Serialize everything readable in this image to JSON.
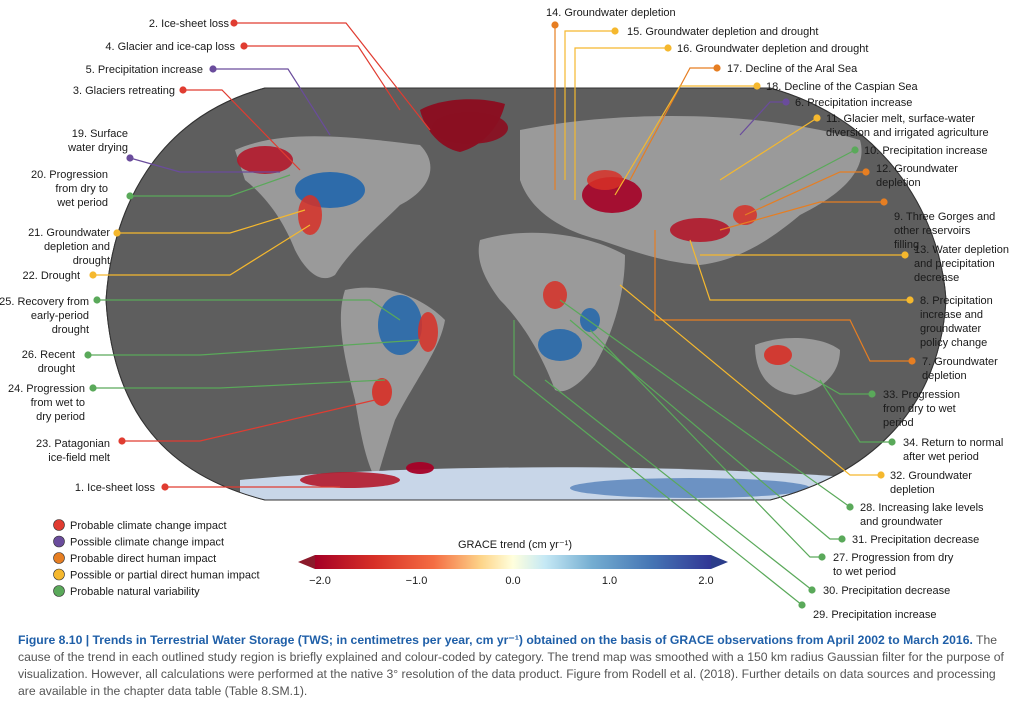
{
  "colors": {
    "climate_probable": "#e03c31",
    "climate_possible": "#6a4c9c",
    "human_direct": "#e67e22",
    "human_possible": "#f5b82e",
    "natural": "#5aa95a",
    "land": "#8e8e8e",
    "ocean_frame": "#ffffff"
  },
  "legend": [
    {
      "key": "climate_probable",
      "label": "Probable climate change impact"
    },
    {
      "key": "climate_possible",
      "label": "Possible climate change impact"
    },
    {
      "key": "human_direct",
      "label": "Probable direct human impact"
    },
    {
      "key": "human_possible",
      "label": "Possible or partial direct human impact"
    },
    {
      "key": "natural",
      "label": "Probable natural variability"
    }
  ],
  "colorbar": {
    "title": "GRACE trend (cm yr⁻¹)",
    "ticks": [
      "−2.0",
      "−1.0",
      "0.0",
      "1.0",
      "2.0"
    ],
    "min": -2.0,
    "max": 2.0
  },
  "regions": [
    {
      "id": "r1",
      "cat": "climate_probable",
      "lines": [
        "1. Ice-sheet loss"
      ]
    },
    {
      "id": "r2",
      "cat": "climate_probable",
      "lines": [
        "2. Ice-sheet loss"
      ]
    },
    {
      "id": "r3",
      "cat": "climate_probable",
      "lines": [
        "3. Glaciers retreating"
      ]
    },
    {
      "id": "r4",
      "cat": "climate_probable",
      "lines": [
        "4. Glacier and ice-cap loss"
      ]
    },
    {
      "id": "r5",
      "cat": "climate_possible",
      "lines": [
        "5. Precipitation increase"
      ]
    },
    {
      "id": "r6",
      "cat": "climate_possible",
      "lines": [
        "6. Precipitation increase"
      ]
    },
    {
      "id": "r7",
      "cat": "human_direct",
      "lines": [
        "7. Groundwater",
        "depletion"
      ]
    },
    {
      "id": "r8",
      "cat": "human_possible",
      "lines": [
        "8. Precipitation",
        "increase and",
        "groundwater",
        "policy change"
      ]
    },
    {
      "id": "r9",
      "cat": "human_direct",
      "lines": [
        "9. Three Gorges and",
        "other reservoirs",
        "filling"
      ]
    },
    {
      "id": "r10",
      "cat": "natural",
      "lines": [
        "10. Precipitation increase"
      ]
    },
    {
      "id": "r11",
      "cat": "human_possible",
      "lines": [
        "11. Glacier melt, surface-water",
        "diversion and irrigated agriculture"
      ]
    },
    {
      "id": "r12",
      "cat": "human_direct",
      "lines": [
        "12. Groundwater",
        "depletion"
      ]
    },
    {
      "id": "r13",
      "cat": "human_possible",
      "lines": [
        "13. Water depletion",
        "and precipitation",
        "decrease"
      ]
    },
    {
      "id": "r14",
      "cat": "human_direct",
      "lines": [
        "14. Groundwater depletion"
      ]
    },
    {
      "id": "r15",
      "cat": "human_possible",
      "lines": [
        "15. Groundwater depletion and drought"
      ]
    },
    {
      "id": "r16",
      "cat": "human_possible",
      "lines": [
        "16. Groundwater depletion and drought"
      ]
    },
    {
      "id": "r17",
      "cat": "human_direct",
      "lines": [
        "17. Decline of the Aral Sea"
      ]
    },
    {
      "id": "r18",
      "cat": "human_possible",
      "lines": [
        "18. Decline of the Caspian Sea"
      ]
    },
    {
      "id": "r19",
      "cat": "climate_possible",
      "lines": [
        "19. Surface",
        "water drying"
      ]
    },
    {
      "id": "r20",
      "cat": "natural",
      "lines": [
        "20. Progression",
        "from dry to",
        "wet period"
      ]
    },
    {
      "id": "r21",
      "cat": "human_possible",
      "lines": [
        "21. Groundwater",
        "depletion and",
        "drought"
      ]
    },
    {
      "id": "r22",
      "cat": "human_possible",
      "lines": [
        "22. Drought"
      ]
    },
    {
      "id": "r23",
      "cat": "climate_probable",
      "lines": [
        "23. Patagonian",
        "ice-field melt"
      ]
    },
    {
      "id": "r24",
      "cat": "natural",
      "lines": [
        "24. Progression",
        "from wet to",
        "dry period"
      ]
    },
    {
      "id": "r25",
      "cat": "natural",
      "lines": [
        "25. Recovery from",
        "early-period",
        "drought"
      ]
    },
    {
      "id": "r26",
      "cat": "natural",
      "lines": [
        "26. Recent",
        "drought"
      ]
    },
    {
      "id": "r27",
      "cat": "natural",
      "lines": [
        "27. Progression from dry",
        "to wet period"
      ]
    },
    {
      "id": "r28",
      "cat": "natural",
      "lines": [
        "28. Increasing lake levels",
        "and groundwater"
      ]
    },
    {
      "id": "r29",
      "cat": "natural",
      "lines": [
        "29. Precipitation increase"
      ]
    },
    {
      "id": "r30",
      "cat": "natural",
      "lines": [
        "30. Precipitation decrease"
      ]
    },
    {
      "id": "r31",
      "cat": "natural",
      "lines": [
        "31. Precipitation decrease"
      ]
    },
    {
      "id": "r32",
      "cat": "human_possible",
      "lines": [
        "32. Groundwater",
        "depletion"
      ]
    },
    {
      "id": "r33",
      "cat": "natural",
      "lines": [
        "33. Progression",
        "from dry to wet",
        "period"
      ]
    },
    {
      "id": "r34",
      "cat": "natural",
      "lines": [
        "34. Return to normal",
        "after wet period"
      ]
    }
  ],
  "caption": {
    "title": "Figure 8.10 | Trends in Terrestrial Water Storage (TWS; in centimetres per year, cm yr⁻¹) obtained on the basis of GRACE observations from April 2002 to March 2016.",
    "body": " The cause of the trend in each outlined study region is briefly explained and colour-coded by category. The trend map was smoothed with a 150 km radius Gaussian filter for the purpose of visualization. However, all calculations were performed at the native 3° resolution of the data product. Figure from Rodell et al. (2018). Further details on data sources and processing are available in the chapter data table (Table 8.SM.1)."
  }
}
